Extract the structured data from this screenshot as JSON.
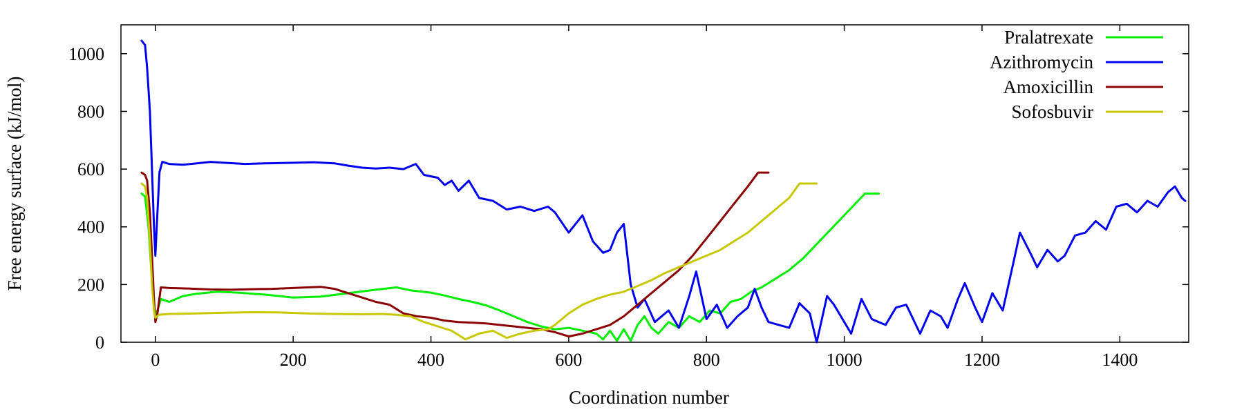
{
  "chart_data": {
    "type": "line",
    "title": "",
    "xlabel": "Coordination number",
    "ylabel": "Free energy surface (kJ/mol)",
    "xlim": [
      -50,
      1500
    ],
    "ylim": [
      0,
      1100
    ],
    "xticks": [
      0,
      200,
      400,
      600,
      800,
      1000,
      1200,
      1400
    ],
    "yticks": [
      0,
      200,
      400,
      600,
      800,
      1000
    ],
    "grid": false,
    "legend_position": "top-right",
    "series": [
      {
        "name": "Pralatrexate",
        "color": "#00ee00",
        "points": [
          [
            -20,
            515
          ],
          [
            -15,
            505
          ],
          [
            -10,
            400
          ],
          [
            -6,
            250
          ],
          [
            -2,
            140
          ],
          [
            0,
            95
          ],
          [
            3,
            110
          ],
          [
            8,
            150
          ],
          [
            20,
            140
          ],
          [
            40,
            160
          ],
          [
            60,
            168
          ],
          [
            90,
            175
          ],
          [
            120,
            172
          ],
          [
            160,
            165
          ],
          [
            200,
            155
          ],
          [
            240,
            158
          ],
          [
            280,
            170
          ],
          [
            320,
            182
          ],
          [
            350,
            190
          ],
          [
            370,
            180
          ],
          [
            400,
            172
          ],
          [
            420,
            162
          ],
          [
            440,
            150
          ],
          [
            460,
            140
          ],
          [
            480,
            128
          ],
          [
            500,
            110
          ],
          [
            520,
            90
          ],
          [
            540,
            70
          ],
          [
            560,
            55
          ],
          [
            580,
            45
          ],
          [
            600,
            50
          ],
          [
            620,
            40
          ],
          [
            640,
            30
          ],
          [
            650,
            10
          ],
          [
            660,
            40
          ],
          [
            670,
            5
          ],
          [
            680,
            45
          ],
          [
            690,
            5
          ],
          [
            700,
            60
          ],
          [
            710,
            90
          ],
          [
            720,
            50
          ],
          [
            730,
            30
          ],
          [
            745,
            70
          ],
          [
            760,
            50
          ],
          [
            775,
            90
          ],
          [
            790,
            70
          ],
          [
            805,
            110
          ],
          [
            820,
            100
          ],
          [
            835,
            140
          ],
          [
            850,
            150
          ],
          [
            865,
            175
          ],
          [
            880,
            190
          ],
          [
            900,
            220
          ],
          [
            920,
            250
          ],
          [
            940,
            290
          ],
          [
            960,
            340
          ],
          [
            980,
            390
          ],
          [
            1000,
            440
          ],
          [
            1020,
            490
          ],
          [
            1030,
            515
          ],
          [
            1050,
            515
          ]
        ]
      },
      {
        "name": "Azithromycin",
        "color": "#0000ee",
        "points": [
          [
            -20,
            1045
          ],
          [
            -15,
            1030
          ],
          [
            -12,
            950
          ],
          [
            -8,
            800
          ],
          [
            -5,
            600
          ],
          [
            -2,
            400
          ],
          [
            0,
            300
          ],
          [
            3,
            450
          ],
          [
            6,
            590
          ],
          [
            10,
            625
          ],
          [
            20,
            618
          ],
          [
            40,
            615
          ],
          [
            60,
            620
          ],
          [
            80,
            625
          ],
          [
            100,
            622
          ],
          [
            130,
            618
          ],
          [
            160,
            620
          ],
          [
            200,
            622
          ],
          [
            230,
            624
          ],
          [
            260,
            620
          ],
          [
            280,
            612
          ],
          [
            300,
            605
          ],
          [
            320,
            602
          ],
          [
            340,
            605
          ],
          [
            360,
            600
          ],
          [
            378,
            618
          ],
          [
            390,
            580
          ],
          [
            410,
            570
          ],
          [
            420,
            545
          ],
          [
            430,
            560
          ],
          [
            440,
            525
          ],
          [
            455,
            560
          ],
          [
            470,
            500
          ],
          [
            490,
            490
          ],
          [
            510,
            460
          ],
          [
            530,
            470
          ],
          [
            550,
            455
          ],
          [
            570,
            470
          ],
          [
            580,
            450
          ],
          [
            600,
            380
          ],
          [
            620,
            440
          ],
          [
            635,
            350
          ],
          [
            650,
            310
          ],
          [
            660,
            320
          ],
          [
            670,
            380
          ],
          [
            680,
            410
          ],
          [
            690,
            200
          ],
          [
            700,
            120
          ],
          [
            710,
            150
          ],
          [
            725,
            70
          ],
          [
            745,
            110
          ],
          [
            760,
            50
          ],
          [
            775,
            160
          ],
          [
            785,
            245
          ],
          [
            800,
            80
          ],
          [
            815,
            130
          ],
          [
            830,
            50
          ],
          [
            845,
            90
          ],
          [
            860,
            120
          ],
          [
            870,
            185
          ],
          [
            880,
            120
          ],
          [
            890,
            70
          ],
          [
            905,
            60
          ],
          [
            920,
            50
          ],
          [
            935,
            135
          ],
          [
            950,
            100
          ],
          [
            960,
            0
          ],
          [
            975,
            160
          ],
          [
            985,
            130
          ],
          [
            1000,
            70
          ],
          [
            1010,
            30
          ],
          [
            1025,
            150
          ],
          [
            1040,
            80
          ],
          [
            1060,
            60
          ],
          [
            1075,
            120
          ],
          [
            1090,
            130
          ],
          [
            1100,
            80
          ],
          [
            1110,
            30
          ],
          [
            1125,
            110
          ],
          [
            1140,
            90
          ],
          [
            1150,
            50
          ],
          [
            1165,
            150
          ],
          [
            1175,
            205
          ],
          [
            1190,
            120
          ],
          [
            1200,
            70
          ],
          [
            1215,
            170
          ],
          [
            1230,
            110
          ],
          [
            1245,
            270
          ],
          [
            1255,
            380
          ],
          [
            1270,
            310
          ],
          [
            1280,
            260
          ],
          [
            1295,
            320
          ],
          [
            1310,
            280
          ],
          [
            1320,
            300
          ],
          [
            1335,
            370
          ],
          [
            1350,
            380
          ],
          [
            1365,
            420
          ],
          [
            1380,
            390
          ],
          [
            1395,
            470
          ],
          [
            1410,
            480
          ],
          [
            1425,
            450
          ],
          [
            1440,
            490
          ],
          [
            1455,
            470
          ],
          [
            1470,
            520
          ],
          [
            1480,
            540
          ],
          [
            1490,
            500
          ],
          [
            1495,
            490
          ]
        ]
      },
      {
        "name": "Amoxicillin",
        "color": "#8b0000",
        "points": [
          [
            -20,
            588
          ],
          [
            -15,
            580
          ],
          [
            -12,
            560
          ],
          [
            -8,
            450
          ],
          [
            -5,
            300
          ],
          [
            -2,
            150
          ],
          [
            0,
            70
          ],
          [
            3,
            100
          ],
          [
            8,
            190
          ],
          [
            20,
            188
          ],
          [
            50,
            186
          ],
          [
            80,
            183
          ],
          [
            110,
            182
          ],
          [
            140,
            184
          ],
          [
            170,
            185
          ],
          [
            200,
            188
          ],
          [
            220,
            190
          ],
          [
            240,
            192
          ],
          [
            260,
            185
          ],
          [
            280,
            170
          ],
          [
            300,
            155
          ],
          [
            320,
            140
          ],
          [
            340,
            130
          ],
          [
            360,
            100
          ],
          [
            380,
            90
          ],
          [
            400,
            85
          ],
          [
            420,
            75
          ],
          [
            440,
            70
          ],
          [
            460,
            68
          ],
          [
            480,
            65
          ],
          [
            500,
            60
          ],
          [
            520,
            55
          ],
          [
            540,
            50
          ],
          [
            560,
            45
          ],
          [
            580,
            35
          ],
          [
            600,
            20
          ],
          [
            620,
            30
          ],
          [
            640,
            45
          ],
          [
            660,
            60
          ],
          [
            680,
            90
          ],
          [
            700,
            130
          ],
          [
            720,
            170
          ],
          [
            740,
            210
          ],
          [
            760,
            250
          ],
          [
            780,
            300
          ],
          [
            800,
            360
          ],
          [
            820,
            420
          ],
          [
            840,
            480
          ],
          [
            860,
            540
          ],
          [
            875,
            588
          ],
          [
            890,
            588
          ]
        ]
      },
      {
        "name": "Sofosbuvir",
        "color": "#c8c800",
        "points": [
          [
            -20,
            550
          ],
          [
            -15,
            540
          ],
          [
            -12,
            500
          ],
          [
            -8,
            350
          ],
          [
            -5,
            200
          ],
          [
            -2,
            110
          ],
          [
            0,
            85
          ],
          [
            5,
            95
          ],
          [
            20,
            98
          ],
          [
            60,
            100
          ],
          [
            100,
            102
          ],
          [
            140,
            104
          ],
          [
            180,
            103
          ],
          [
            220,
            100
          ],
          [
            260,
            98
          ],
          [
            300,
            97
          ],
          [
            330,
            98
          ],
          [
            350,
            95
          ],
          [
            370,
            90
          ],
          [
            390,
            70
          ],
          [
            410,
            55
          ],
          [
            430,
            40
          ],
          [
            450,
            10
          ],
          [
            470,
            30
          ],
          [
            490,
            40
          ],
          [
            510,
            15
          ],
          [
            530,
            30
          ],
          [
            550,
            40
          ],
          [
            570,
            45
          ],
          [
            580,
            60
          ],
          [
            600,
            100
          ],
          [
            620,
            130
          ],
          [
            640,
            150
          ],
          [
            660,
            165
          ],
          [
            680,
            175
          ],
          [
            700,
            195
          ],
          [
            720,
            215
          ],
          [
            740,
            240
          ],
          [
            760,
            260
          ],
          [
            780,
            280
          ],
          [
            800,
            300
          ],
          [
            820,
            320
          ],
          [
            840,
            350
          ],
          [
            860,
            380
          ],
          [
            880,
            420
          ],
          [
            900,
            460
          ],
          [
            920,
            500
          ],
          [
            935,
            550
          ],
          [
            960,
            550
          ]
        ]
      }
    ]
  }
}
